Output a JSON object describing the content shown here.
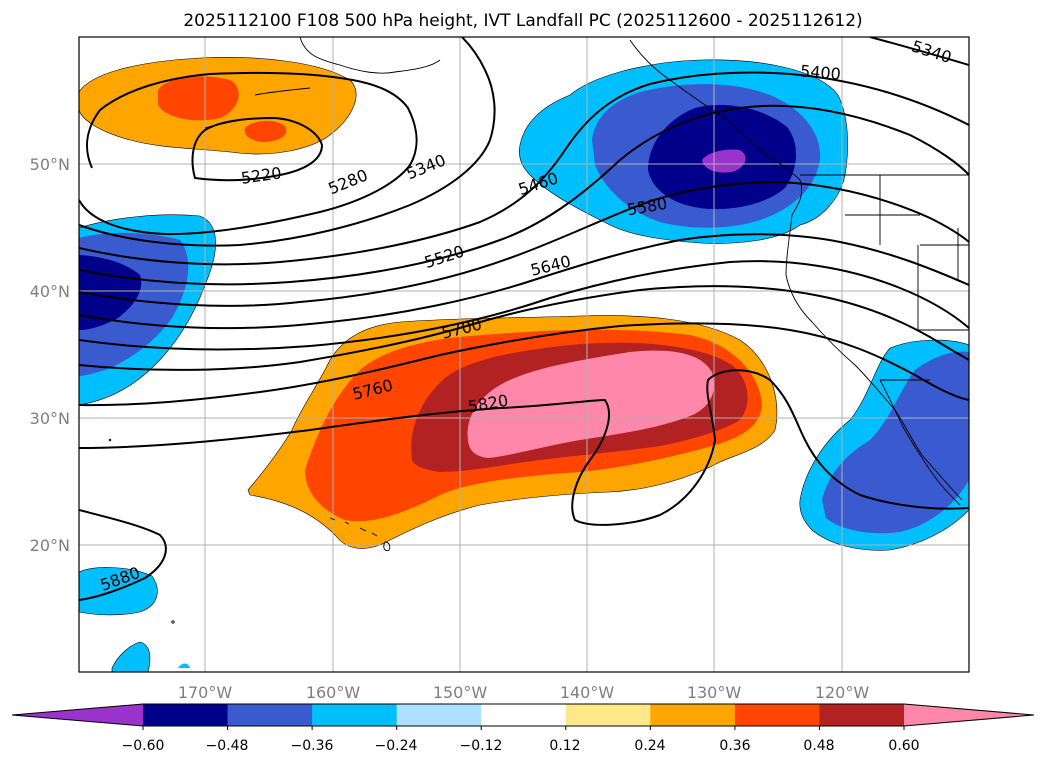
{
  "chart_data": {
    "type": "contour-map",
    "title": "2025112100 F108 500 hPa height, IVT Landfall PC (2025112600 - 2025112612)",
    "lon_range": [
      -180,
      -110
    ],
    "lat_range": [
      10,
      60
    ],
    "x_ticks": [
      {
        "lon": -170,
        "label": "170°W"
      },
      {
        "lon": -160,
        "label": "160°W"
      },
      {
        "lon": -150,
        "label": "150°W"
      },
      {
        "lon": -140,
        "label": "140°W"
      },
      {
        "lon": -130,
        "label": "130°W"
      },
      {
        "lon": -120,
        "label": "120°W"
      }
    ],
    "y_ticks": [
      {
        "lat": 50,
        "label": "50°N"
      },
      {
        "lat": 40,
        "label": "40°N"
      },
      {
        "lat": 30,
        "label": "30°N"
      },
      {
        "lat": 20,
        "label": "20°N"
      }
    ],
    "height_contour_labels": [
      "5220",
      "5280",
      "5340",
      "5340",
      "5400",
      "5460",
      "5520",
      "5580",
      "5640",
      "5700",
      "5760",
      "5820",
      "5880"
    ],
    "colorbar": {
      "extend": "both",
      "levels": [
        -0.6,
        -0.48,
        -0.36,
        -0.24,
        -0.12,
        0.12,
        0.24,
        0.36,
        0.48,
        0.6
      ],
      "tick_labels": [
        "−0.60",
        "−0.48",
        "−0.36",
        "−0.24",
        "−0.12",
        "0.12",
        "0.24",
        "0.36",
        "0.48",
        "0.60"
      ],
      "colors": [
        "#9933cc",
        "#00008b",
        "#3a5bcf",
        "#00bfff",
        "#addfff",
        "#ffffff",
        "#ffe88a",
        "#ffa500",
        "#ff4500",
        "#b22222",
        "#ff88aa"
      ]
    }
  }
}
